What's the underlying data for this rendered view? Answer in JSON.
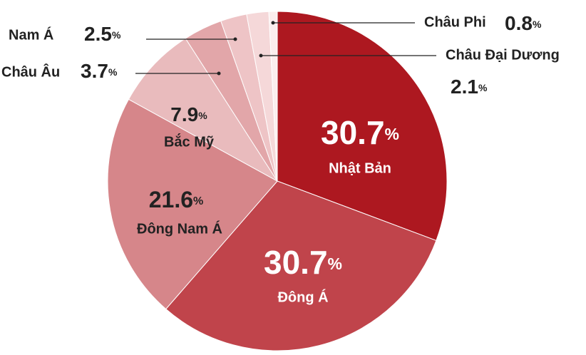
{
  "chart_data": {
    "type": "pie",
    "unit": "%",
    "categories": [
      "Nhật Bản",
      "Đông Á",
      "Đông Nam Á",
      "Bắc Mỹ",
      "Châu Âu",
      "Nam Á",
      "Châu Đại Dương",
      "Châu Phi"
    ],
    "values": [
      30.7,
      30.7,
      21.6,
      7.9,
      3.7,
      2.5,
      2.1,
      0.8
    ],
    "colors": [
      "#ad1820",
      "#c0444b",
      "#d6868a",
      "#e9bbbd",
      "#e2a6a9",
      "#eec4c6",
      "#f5d8d9",
      "#fbeded"
    ]
  }
}
